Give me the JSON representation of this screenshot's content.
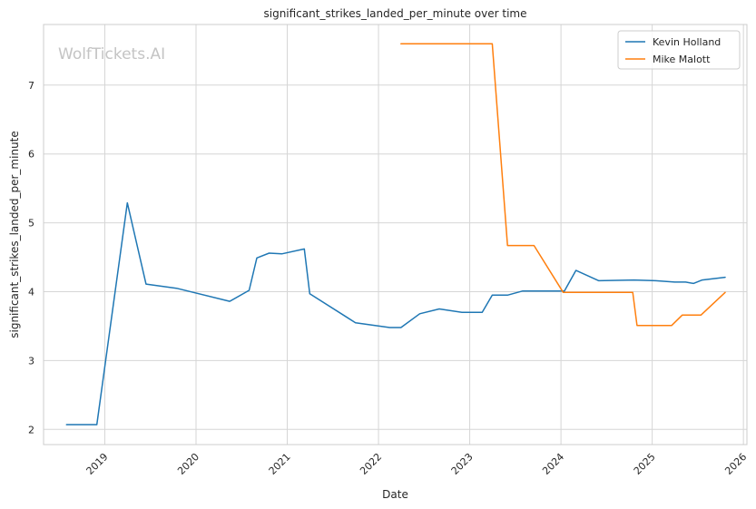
{
  "chart_data": {
    "type": "line",
    "title": "significant_strikes_landed_per_minute over time",
    "xlabel": "Date",
    "ylabel": "significant_strikes_landed_per_minute",
    "watermark": "WolfTickets.AI",
    "x_ticks": [
      "2019",
      "2020",
      "2021",
      "2022",
      "2023",
      "2024",
      "2025",
      "2026"
    ],
    "y_ticks": [
      "2",
      "3",
      "4",
      "5",
      "6",
      "7"
    ],
    "xlim": [
      "2018-05-01",
      "2026-01-15"
    ],
    "ylim": [
      1.78,
      7.88
    ],
    "grid": true,
    "legend_position": "top-right",
    "series": [
      {
        "name": "Kevin Holland",
        "color": "#1f77b4",
        "points": [
          [
            "2018-08-01",
            2.07
          ],
          [
            "2018-11-30",
            2.07
          ],
          [
            "2019-04-01",
            5.29
          ],
          [
            "2019-06-15",
            4.11
          ],
          [
            "2019-10-15",
            4.05
          ],
          [
            "2020-05-15",
            3.86
          ],
          [
            "2020-08-01",
            4.02
          ],
          [
            "2020-09-01",
            4.49
          ],
          [
            "2020-10-20",
            4.56
          ],
          [
            "2020-12-10",
            4.55
          ],
          [
            "2021-03-10",
            4.62
          ],
          [
            "2021-04-01",
            3.97
          ],
          [
            "2021-10-01",
            3.55
          ],
          [
            "2022-02-15",
            3.48
          ],
          [
            "2022-04-01",
            3.48
          ],
          [
            "2022-06-15",
            3.68
          ],
          [
            "2022-09-01",
            3.75
          ],
          [
            "2022-12-01",
            3.7
          ],
          [
            "2023-02-20",
            3.7
          ],
          [
            "2023-04-01",
            3.95
          ],
          [
            "2023-06-01",
            3.95
          ],
          [
            "2023-08-01",
            4.01
          ],
          [
            "2023-10-01",
            4.01
          ],
          [
            "2024-01-15",
            4.01
          ],
          [
            "2024-03-01",
            4.31
          ],
          [
            "2024-06-01",
            4.16
          ],
          [
            "2024-10-20",
            4.17
          ],
          [
            "2025-01-15",
            4.16
          ],
          [
            "2025-04-01",
            4.14
          ],
          [
            "2025-05-15",
            4.14
          ],
          [
            "2025-06-15",
            4.12
          ],
          [
            "2025-07-20",
            4.17
          ],
          [
            "2025-10-20",
            4.21
          ]
        ]
      },
      {
        "name": "Mike Malott",
        "color": "#ff7f0e",
        "points": [
          [
            "2022-04-01",
            7.6
          ],
          [
            "2023-04-01",
            7.6
          ],
          [
            "2023-06-01",
            4.67
          ],
          [
            "2023-09-15",
            4.67
          ],
          [
            "2024-01-10",
            3.99
          ],
          [
            "2024-10-15",
            3.99
          ],
          [
            "2024-11-01",
            3.51
          ],
          [
            "2025-03-20",
            3.51
          ],
          [
            "2025-05-01",
            3.66
          ],
          [
            "2025-07-15",
            3.66
          ],
          [
            "2025-10-20",
            3.99
          ]
        ]
      }
    ]
  }
}
